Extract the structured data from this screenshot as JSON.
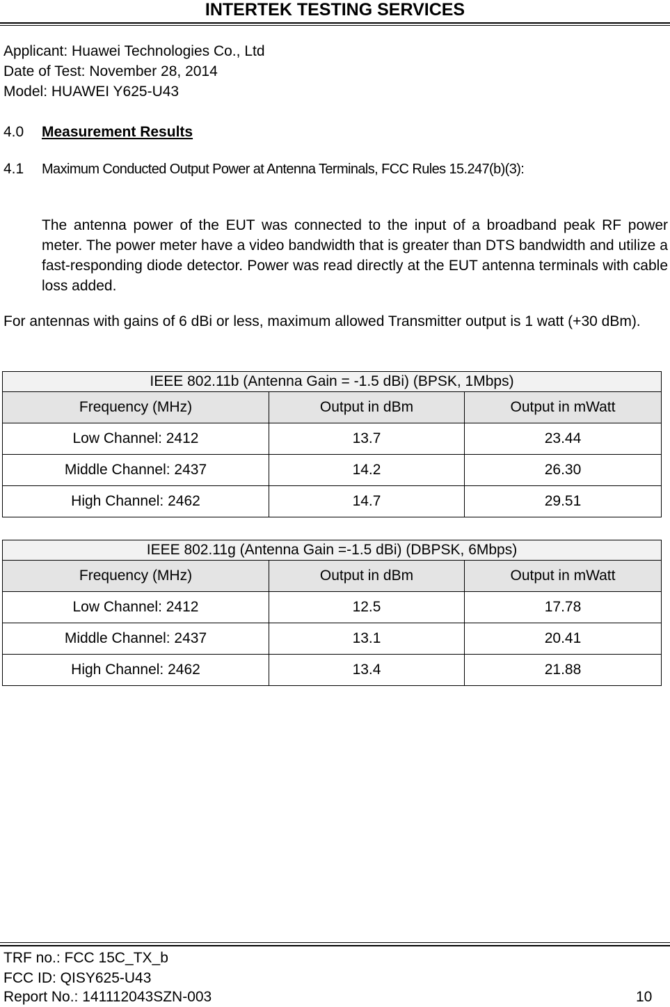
{
  "header": {
    "title": "INTERTEK TESTING SERVICES"
  },
  "info": {
    "applicant": "Applicant: Huawei Technologies Co., Ltd",
    "date": "Date of Test: November 28, 2014",
    "model": "Model: HUAWEI Y625-U43"
  },
  "section": {
    "number": "4.0",
    "title": "Measurement Results"
  },
  "subsection": {
    "number": "4.1",
    "title": "Maximum Conducted Output Power at Antenna Terminals, FCC Rules 15.247(b)(3):"
  },
  "paragraph1": "The antenna power of the EUT was connected to the input of a broadband peak RF power meter. The power meter have a video bandwidth that is greater than DTS bandwidth and utilize a fast-responding diode detector. Power was read directly at the EUT antenna terminals with cable loss added.",
  "paragraph2": "For antennas with gains of 6 dBi or less, maximum allowed Transmitter output is 1 watt (+30 dBm).",
  "table_b": {
    "caption": "IEEE 802.11b (Antenna Gain = -1.5 dBi) (BPSK, 1Mbps)",
    "headers": [
      "Frequency (MHz)",
      "Output in dBm",
      "Output in mWatt"
    ],
    "rows": [
      [
        "Low Channel: 2412",
        "13.7",
        "23.44"
      ],
      [
        "Middle Channel: 2437",
        "14.2",
        "26.30"
      ],
      [
        "High Channel: 2462",
        "14.7",
        "29.51"
      ]
    ]
  },
  "table_g": {
    "caption": "IEEE 802.11g (Antenna Gain =-1.5 dBi) (DBPSK, 6Mbps)",
    "headers": [
      "Frequency (MHz)",
      "Output in dBm",
      "Output in mWatt"
    ],
    "rows": [
      [
        "Low Channel: 2412",
        "12.5",
        "17.78"
      ],
      [
        "Middle Channel: 2437",
        "13.1",
        "20.41"
      ],
      [
        "High Channel: 2462",
        "13.4",
        "21.88"
      ]
    ]
  },
  "footer": {
    "trf": "TRF no.: FCC 15C_TX_b",
    "fcc_id": "FCC ID: QISY625-U43",
    "report": "Report No.: 141112043SZN-003",
    "page": "10"
  }
}
